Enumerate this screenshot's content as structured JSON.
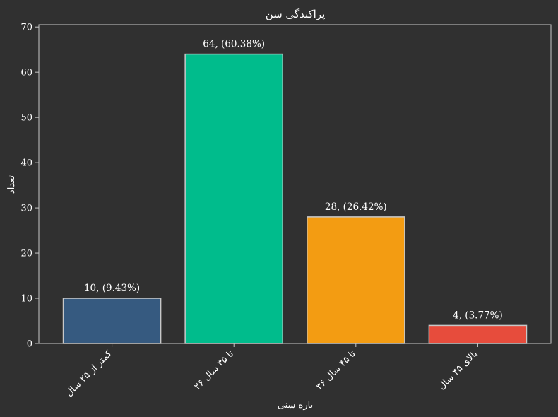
{
  "chart_data": {
    "type": "bar",
    "title": "پراکندگی سن",
    "xlabel": "بازه سنی",
    "ylabel": "تعداد",
    "categories": [
      "کمتر از ۲۵ سال",
      "۲۶ تا ۳۵ سال",
      "۳۶ تا ۴۵ سال",
      "بالای ۴۵ سال"
    ],
    "values": [
      10,
      64,
      28,
      4
    ],
    "value_labels": [
      "10, (9.43%)",
      "64, (60.38%)",
      "28, (26.42%)",
      "4, (3.77%)"
    ],
    "colors": [
      "#365a80",
      "#00bc8c",
      "#f39c12",
      "#e74c3c"
    ],
    "bar_edge_color": "#c8c8c8",
    "ylim": [
      0,
      70.5
    ],
    "yticks": [
      0,
      10,
      20,
      30,
      40,
      50,
      60,
      70
    ],
    "grid": false,
    "legend": "none"
  }
}
